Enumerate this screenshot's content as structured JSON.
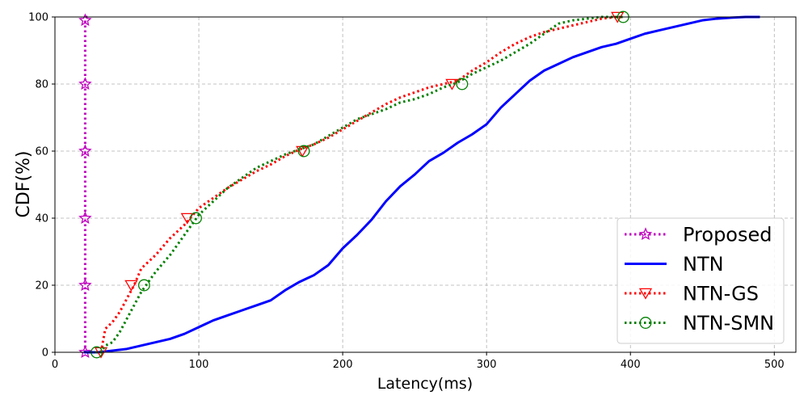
{
  "chart_data": {
    "type": "line",
    "xlabel": "Latency(ms)",
    "ylabel": "CDF(%)",
    "xlim": [
      0,
      515
    ],
    "ylim": [
      0,
      100
    ],
    "x_ticks": [
      "0",
      "100",
      "200",
      "300",
      "400",
      "500"
    ],
    "y_ticks": [
      "0",
      "20",
      "40",
      "60",
      "80",
      "100"
    ],
    "grid": true,
    "legend_position": "lower-right",
    "series": [
      {
        "name": "Proposed",
        "color": "#bf00bf",
        "line_style": "dotted",
        "marker": "star",
        "x": [
          21,
          21,
          21,
          21,
          21,
          21,
          22,
          24
        ],
        "y": [
          0,
          20,
          40,
          60,
          80,
          99,
          100,
          100
        ],
        "marker_points": [
          [
            21,
            0
          ],
          [
            21,
            20
          ],
          [
            21,
            40
          ],
          [
            21,
            60
          ],
          [
            21,
            80
          ],
          [
            21,
            99
          ]
        ]
      },
      {
        "name": "NTN",
        "color": "#0000ff",
        "line_style": "solid",
        "marker": "none",
        "x": [
          20,
          30,
          40,
          50,
          60,
          70,
          80,
          90,
          100,
          110,
          120,
          130,
          140,
          150,
          160,
          170,
          180,
          190,
          200,
          210,
          220,
          230,
          240,
          250,
          260,
          270,
          280,
          290,
          300,
          310,
          320,
          330,
          340,
          350,
          360,
          370,
          380,
          390,
          400,
          410,
          420,
          430,
          440,
          450,
          460,
          470,
          480,
          490
        ],
        "y": [
          0,
          0,
          0.5,
          1,
          2,
          3,
          4,
          5.5,
          7.5,
          9.5,
          11,
          12.5,
          14,
          15.5,
          18.5,
          21,
          23,
          26,
          31,
          35,
          39.5,
          45,
          49.5,
          53,
          57,
          59.5,
          62.5,
          65,
          68,
          73,
          77,
          81,
          84,
          86,
          88,
          89.5,
          91,
          92,
          93.5,
          95,
          96,
          97,
          98,
          99,
          99.5,
          99.8,
          100,
          100
        ]
      },
      {
        "name": "NTN-GS",
        "color": "#ff0000",
        "line_style": "dotted",
        "marker": "triangle-down",
        "x": [
          32,
          35,
          40,
          45,
          50,
          55,
          60,
          70,
          80,
          90,
          100,
          110,
          120,
          130,
          140,
          150,
          160,
          170,
          180,
          190,
          200,
          210,
          220,
          230,
          240,
          250,
          260,
          270,
          280,
          290,
          300,
          310,
          320,
          330,
          340,
          350,
          360,
          370,
          380,
          390,
          395
        ],
        "y": [
          0,
          7,
          9,
          12,
          16,
          20,
          25,
          29,
          34,
          38,
          43,
          46,
          49,
          51.5,
          54,
          56,
          58.5,
          60.5,
          62,
          64,
          66.5,
          69,
          71.5,
          74,
          76,
          77.5,
          79,
          80,
          81,
          84,
          86.5,
          89.5,
          92,
          94,
          95.5,
          96.5,
          97.5,
          98.5,
          99.5,
          100,
          100
        ],
        "marker_points": [
          [
            32,
            0
          ],
          [
            53,
            20
          ],
          [
            92,
            40
          ],
          [
            172,
            60
          ],
          [
            276,
            80
          ],
          [
            391,
            100
          ]
        ]
      },
      {
        "name": "NTN-SMN",
        "color": "#008000",
        "line_style": "dotted",
        "marker": "circle",
        "x": [
          28,
          32,
          35,
          40,
          45,
          50,
          55,
          60,
          70,
          80,
          90,
          100,
          110,
          120,
          130,
          140,
          150,
          160,
          170,
          180,
          190,
          200,
          210,
          220,
          230,
          240,
          250,
          260,
          270,
          280,
          290,
          300,
          310,
          320,
          330,
          340,
          350,
          360,
          370,
          380,
          390,
          395
        ],
        "y": [
          0,
          0,
          2,
          3,
          6,
          10,
          14,
          18,
          24,
          29,
          35,
          41,
          45,
          49,
          52,
          55,
          57,
          59,
          60.5,
          62,
          64.5,
          67,
          69.5,
          71,
          72.5,
          74.5,
          75.5,
          77,
          79,
          80.5,
          83,
          85,
          87,
          89.5,
          92,
          95,
          98,
          99,
          99.5,
          100,
          100,
          100
        ],
        "marker_points": [
          [
            29,
            0
          ],
          [
            62,
            20
          ],
          [
            98,
            40
          ],
          [
            173,
            60
          ],
          [
            283,
            80
          ],
          [
            395,
            100
          ]
        ]
      }
    ]
  }
}
